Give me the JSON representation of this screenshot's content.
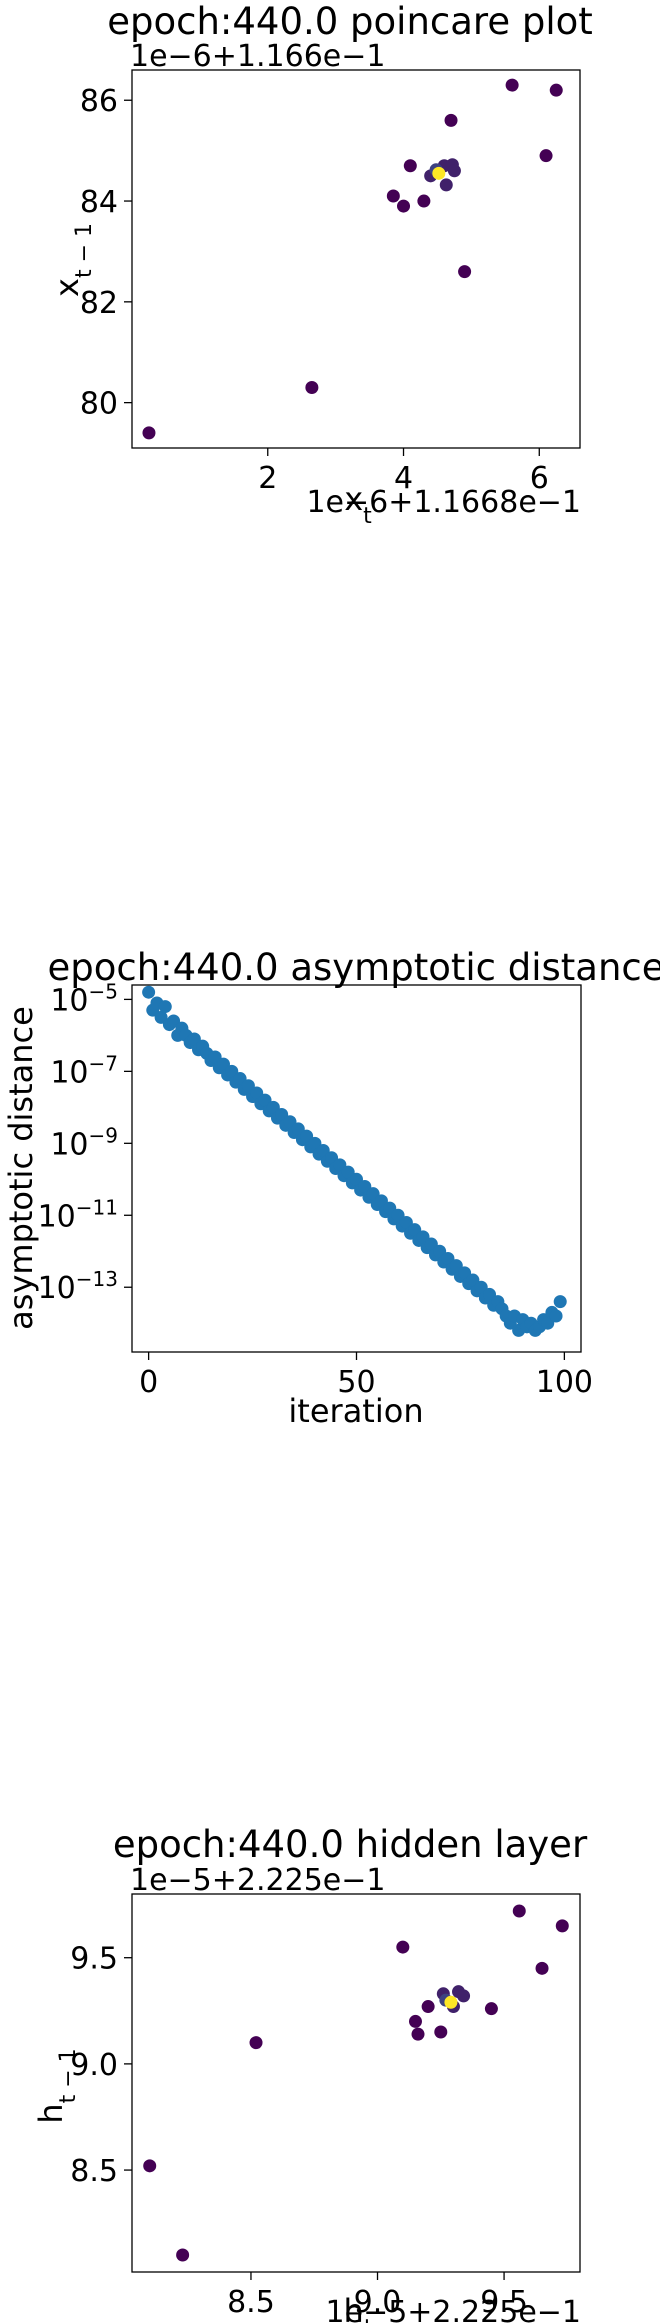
{
  "chart_data": [
    {
      "type": "scatter",
      "title": "epoch:440.0 poincare plot",
      "xlabel": "x_t",
      "ylabel": "x_{t-1}",
      "x_offset_text": "1e−6+1.1668e−1",
      "y_offset_text": "1e−6+1.166e−1",
      "xlim": [
        0.0,
        6.6
      ],
      "ylim": [
        79.1,
        86.6
      ],
      "xticks": [
        2,
        4,
        6
      ],
      "xtick_labels": [
        "2",
        "4",
        "6"
      ],
      "yticks": [
        80,
        82,
        84,
        86
      ],
      "ytick_labels": [
        "80",
        "82",
        "84",
        "86"
      ],
      "grid": false,
      "colors": {
        "early": "#440154",
        "mid": "#3b528b",
        "late": "#fde725"
      },
      "points": [
        {
          "x": 0.25,
          "y": 79.4,
          "c": 0
        },
        {
          "x": 2.65,
          "y": 80.3,
          "c": 0
        },
        {
          "x": 3.85,
          "y": 84.1,
          "c": 0
        },
        {
          "x": 4.0,
          "y": 83.9,
          "c": 0
        },
        {
          "x": 4.1,
          "y": 84.7,
          "c": 0
        },
        {
          "x": 4.3,
          "y": 84.0,
          "c": 0
        },
        {
          "x": 4.7,
          "y": 85.6,
          "c": 0
        },
        {
          "x": 4.9,
          "y": 82.6,
          "c": 0
        },
        {
          "x": 5.6,
          "y": 86.3,
          "c": 0
        },
        {
          "x": 6.1,
          "y": 84.9,
          "c": 0
        },
        {
          "x": 6.25,
          "y": 86.2,
          "c": 0
        },
        {
          "x": 4.4,
          "y": 84.5,
          "c": 0.2
        },
        {
          "x": 4.6,
          "y": 84.7,
          "c": 0.2
        },
        {
          "x": 4.72,
          "y": 84.72,
          "c": 0.2
        },
        {
          "x": 4.75,
          "y": 84.6,
          "c": 0.2
        },
        {
          "x": 4.63,
          "y": 84.32,
          "c": 0.2
        },
        {
          "x": 4.48,
          "y": 84.62,
          "c": 0.4
        },
        {
          "x": 4.52,
          "y": 84.55,
          "c": 1
        }
      ]
    },
    {
      "type": "scatter",
      "title": "epoch:440.0 asymptotic distance",
      "xlabel": "iteration",
      "ylabel": "asymptotic distance",
      "yscale": "log",
      "xlim": [
        -4,
        104
      ],
      "ylim_log10": [
        -14.8,
        -4.6
      ],
      "xticks": [
        0,
        50,
        100
      ],
      "xtick_labels": [
        "0",
        "50",
        "100"
      ],
      "yticks_log10": [
        -5,
        -7,
        -9,
        -11,
        -13
      ],
      "ytick_labels": [
        "10",
        "10",
        "10",
        "10",
        "10"
      ],
      "ytick_exponents": [
        "−5",
        "−7",
        "−9",
        "−11",
        "−13"
      ],
      "grid": false,
      "color": "#1f77b4",
      "x": [
        0,
        1,
        2,
        3,
        4,
        5,
        6,
        7,
        8,
        9,
        10,
        11,
        12,
        13,
        14,
        15,
        16,
        17,
        18,
        19,
        20,
        21,
        22,
        23,
        24,
        25,
        26,
        27,
        28,
        29,
        30,
        31,
        32,
        33,
        34,
        35,
        36,
        37,
        38,
        39,
        40,
        41,
        42,
        43,
        44,
        45,
        46,
        47,
        48,
        49,
        50,
        51,
        52,
        53,
        54,
        55,
        56,
        57,
        58,
        59,
        60,
        61,
        62,
        63,
        64,
        65,
        66,
        67,
        68,
        69,
        70,
        71,
        72,
        73,
        74,
        75,
        76,
        77,
        78,
        79,
        80,
        81,
        82,
        83,
        84,
        85,
        86,
        87,
        88,
        89,
        90,
        91,
        92,
        93,
        94,
        95,
        96,
        97,
        98,
        99
      ],
      "y_log10": [
        -4.8,
        -5.3,
        -5.1,
        -5.5,
        -5.2,
        -5.7,
        -5.6,
        -6.0,
        -5.8,
        -6.0,
        -6.2,
        -6.1,
        -6.4,
        -6.3,
        -6.5,
        -6.7,
        -6.6,
        -6.9,
        -6.8,
        -7.1,
        -7.0,
        -7.3,
        -7.2,
        -7.5,
        -7.4,
        -7.7,
        -7.6,
        -7.9,
        -7.8,
        -8.1,
        -8.0,
        -8.3,
        -8.2,
        -8.5,
        -8.4,
        -8.7,
        -8.6,
        -8.9,
        -8.8,
        -9.1,
        -9.0,
        -9.3,
        -9.2,
        -9.5,
        -9.4,
        -9.7,
        -9.6,
        -9.9,
        -9.8,
        -10.1,
        -10.0,
        -10.3,
        -10.2,
        -10.5,
        -10.4,
        -10.7,
        -10.6,
        -10.9,
        -10.8,
        -11.1,
        -11.0,
        -11.3,
        -11.2,
        -11.5,
        -11.4,
        -11.7,
        -11.6,
        -11.9,
        -11.8,
        -12.1,
        -12.0,
        -12.3,
        -12.2,
        -12.5,
        -12.4,
        -12.7,
        -12.6,
        -12.9,
        -12.8,
        -13.1,
        -13.0,
        -13.3,
        -13.2,
        -13.5,
        -13.4,
        -13.6,
        -13.8,
        -14.0,
        -13.8,
        -14.2,
        -13.9,
        -14.1,
        -14.0,
        -14.2,
        -14.1,
        -13.9,
        -14.0,
        -13.7,
        -13.8,
        -13.4
      ]
    },
    {
      "type": "scatter",
      "title": "epoch:440.0 hidden layer",
      "xlabel": "h_t",
      "ylabel": "h_{t-1}",
      "x_offset_text": "1e−5+2.225e−1",
      "y_offset_text": "1e−5+2.225e−1",
      "xlim": [
        8.03,
        9.8
      ],
      "ylim": [
        8.02,
        9.8
      ],
      "xticks": [
        8.5,
        9.0,
        9.5
      ],
      "xtick_labels": [
        "8.5",
        "9.0",
        "9.5"
      ],
      "yticks": [
        8.5,
        9.0,
        9.5
      ],
      "ytick_labels": [
        "8.5",
        "9.0",
        "9.5"
      ],
      "grid": false,
      "colors": {
        "early": "#440154",
        "mid": "#3b528b",
        "late": "#fde725"
      },
      "points": [
        {
          "x": 8.1,
          "y": 8.52,
          "c": 0
        },
        {
          "x": 8.23,
          "y": 8.1,
          "c": 0
        },
        {
          "x": 8.52,
          "y": 9.1,
          "c": 0
        },
        {
          "x": 9.1,
          "y": 9.55,
          "c": 0
        },
        {
          "x": 9.15,
          "y": 9.2,
          "c": 0
        },
        {
          "x": 9.16,
          "y": 9.14,
          "c": 0
        },
        {
          "x": 9.2,
          "y": 9.27,
          "c": 0
        },
        {
          "x": 9.25,
          "y": 9.15,
          "c": 0
        },
        {
          "x": 9.45,
          "y": 9.26,
          "c": 0
        },
        {
          "x": 9.56,
          "y": 9.72,
          "c": 0
        },
        {
          "x": 9.65,
          "y": 9.45,
          "c": 0
        },
        {
          "x": 9.73,
          "y": 9.65,
          "c": 0
        },
        {
          "x": 9.26,
          "y": 9.33,
          "c": 0.2
        },
        {
          "x": 9.32,
          "y": 9.34,
          "c": 0.2
        },
        {
          "x": 9.34,
          "y": 9.32,
          "c": 0.2
        },
        {
          "x": 9.3,
          "y": 9.27,
          "c": 0.2
        },
        {
          "x": 9.27,
          "y": 9.3,
          "c": 0.4
        },
        {
          "x": 9.29,
          "y": 9.29,
          "c": 1
        }
      ]
    }
  ]
}
